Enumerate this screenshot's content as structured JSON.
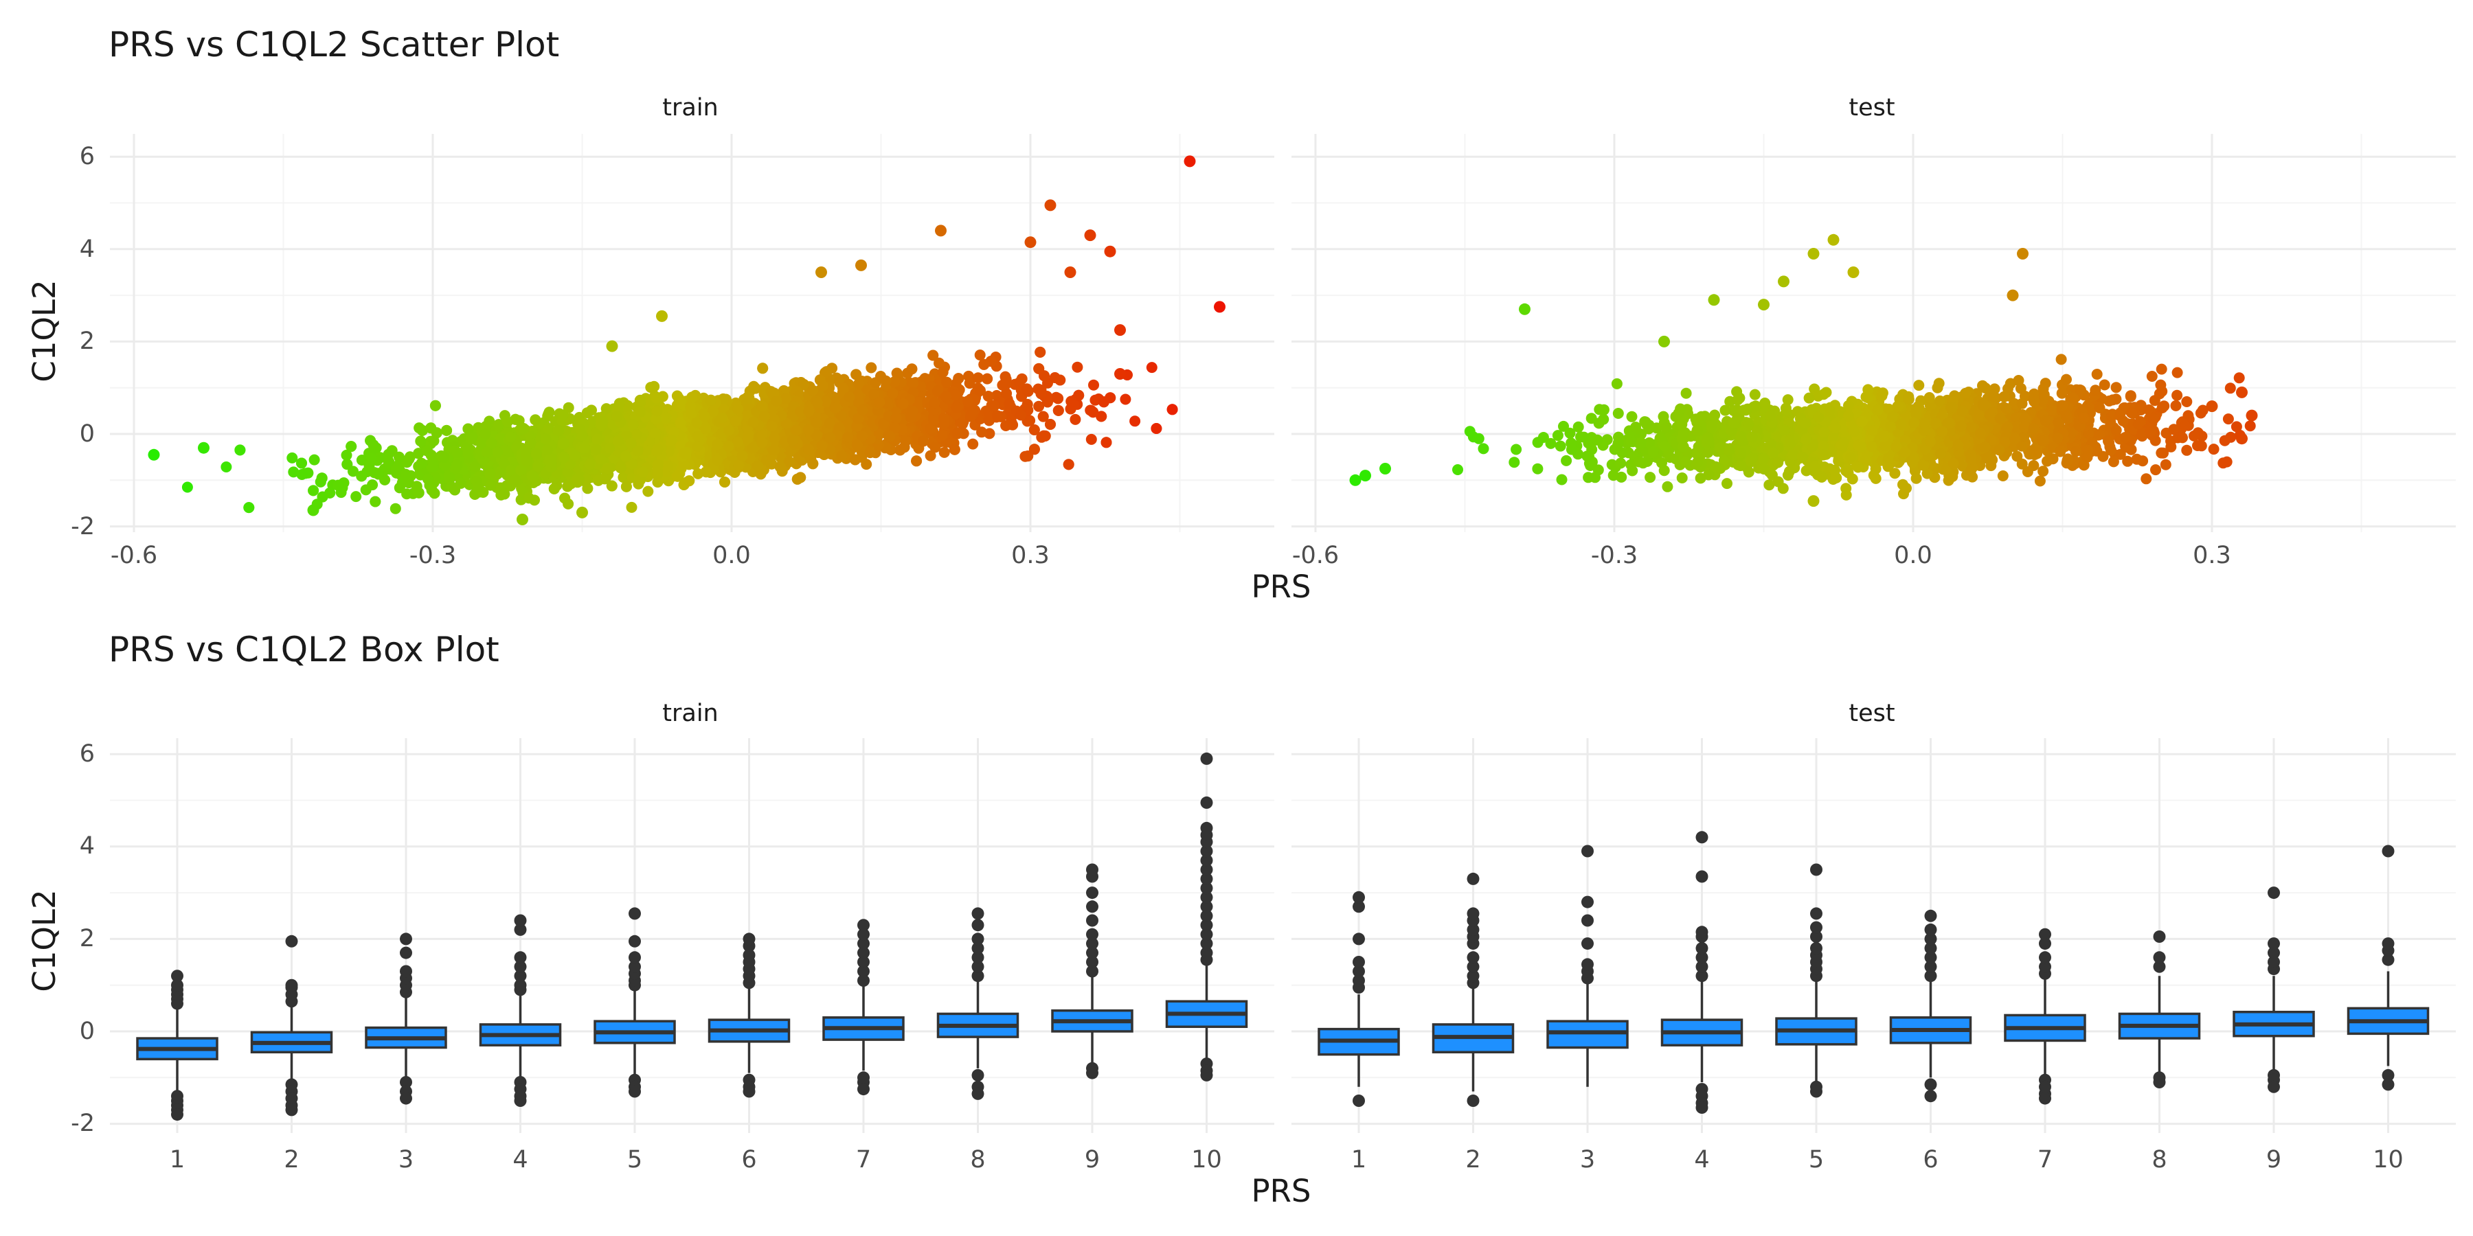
{
  "chart_data": [
    {
      "type": "scatter",
      "title": "PRS vs C1QL2 Scatter Plot",
      "xlabel": "PRS",
      "ylabel": "C1QL2",
      "facets": [
        "train",
        "test"
      ],
      "xlim": [
        -0.6,
        0.5
      ],
      "ylim": [
        -2,
        6
      ],
      "xticks": [
        "-0.6",
        "-0.3",
        "0.0",
        "0.3"
      ],
      "yticks": [
        "-2",
        "0",
        "2",
        "4",
        "6"
      ],
      "grid": true,
      "color_scale": {
        "low": "#22ee00",
        "mid": "#c0b800",
        "high": "#ee1100",
        "mapped_to": "PRS"
      },
      "series": [
        {
          "facet": "train",
          "n_points_approx": 6000,
          "trend": {
            "slope": 2.3,
            "intercept": 0.05,
            "noise_sd": 0.35
          },
          "x_range": [
            -0.58,
            0.49
          ],
          "notable_points": [
            {
              "x": 0.46,
              "y": 5.9
            },
            {
              "x": 0.49,
              "y": 2.75
            },
            {
              "x": 0.32,
              "y": 4.95
            },
            {
              "x": 0.21,
              "y": 4.4
            },
            {
              "x": 0.36,
              "y": 4.3
            },
            {
              "x": 0.3,
              "y": 4.15
            },
            {
              "x": 0.38,
              "y": 3.95
            },
            {
              "x": 0.13,
              "y": 3.65
            },
            {
              "x": 0.09,
              "y": 3.5
            },
            {
              "x": 0.34,
              "y": 3.5
            },
            {
              "x": 0.39,
              "y": 2.25
            },
            {
              "x": 0.39,
              "y": 1.3
            },
            {
              "x": -0.12,
              "y": 1.9
            },
            {
              "x": -0.07,
              "y": 2.55
            },
            {
              "x": -0.53,
              "y": -0.3
            },
            {
              "x": -0.58,
              "y": -0.45
            },
            {
              "x": -0.42,
              "y": -1.65
            },
            {
              "x": -0.21,
              "y": -1.85
            },
            {
              "x": -0.15,
              "y": -1.7
            }
          ]
        },
        {
          "facet": "test",
          "n_points_approx": 2000,
          "trend": {
            "slope": 0.9,
            "intercept": 0.0,
            "noise_sd": 0.38
          },
          "x_range": [
            -0.56,
            0.34
          ],
          "notable_points": [
            {
              "x": -0.39,
              "y": 2.7
            },
            {
              "x": -0.08,
              "y": 4.2
            },
            {
              "x": -0.1,
              "y": 3.9
            },
            {
              "x": -0.06,
              "y": 3.5
            },
            {
              "x": -0.13,
              "y": 3.3
            },
            {
              "x": 0.11,
              "y": 3.9
            },
            {
              "x": 0.1,
              "y": 3.0
            },
            {
              "x": -0.2,
              "y": 2.9
            },
            {
              "x": -0.15,
              "y": 2.8
            },
            {
              "x": -0.25,
              "y": 2.0
            },
            {
              "x": 0.33,
              "y": 0.9
            },
            {
              "x": 0.34,
              "y": 0.4
            },
            {
              "x": 0.3,
              "y": 0.6
            },
            {
              "x": 0.33,
              "y": -0.1
            },
            {
              "x": -0.55,
              "y": -0.9
            },
            {
              "x": -0.56,
              "y": -1.0
            },
            {
              "x": -0.53,
              "y": -0.75
            },
            {
              "x": -0.1,
              "y": -1.45
            }
          ]
        }
      ]
    },
    {
      "type": "box",
      "title": "PRS vs C1QL2 Box Plot",
      "xlabel": "PRS",
      "ylabel": "C1QL2",
      "facets": [
        "train",
        "test"
      ],
      "categories": [
        "1",
        "2",
        "3",
        "4",
        "5",
        "6",
        "7",
        "8",
        "9",
        "10"
      ],
      "ylim": [
        -2,
        6
      ],
      "yticks": [
        "-2",
        "0",
        "2",
        "4",
        "6"
      ],
      "grid": true,
      "box_color": "#1e90ff",
      "series": [
        {
          "facet": "train",
          "boxes": [
            {
              "q1": -0.6,
              "median": -0.38,
              "q3": -0.15,
              "whisker_low": -1.3,
              "whisker_high": 0.5,
              "outliers": [
                0.6,
                0.7,
                0.8,
                0.9,
                1.0,
                1.2,
                -1.4,
                -1.5,
                -1.6,
                -1.7,
                -1.8
              ]
            },
            {
              "q1": -0.45,
              "median": -0.25,
              "q3": -0.02,
              "whisker_low": -1.1,
              "whisker_high": 0.6,
              "outliers": [
                0.65,
                0.8,
                0.95,
                1.0,
                1.95,
                -1.15,
                -1.3,
                -1.45,
                -1.6,
                -1.7
              ]
            },
            {
              "q1": -0.35,
              "median": -0.15,
              "q3": 0.08,
              "whisker_low": -1.0,
              "whisker_high": 0.75,
              "outliers": [
                0.85,
                1.0,
                1.15,
                1.3,
                1.7,
                2.0,
                -1.1,
                -1.3,
                -1.45
              ]
            },
            {
              "q1": -0.3,
              "median": -0.08,
              "q3": 0.15,
              "whisker_low": -1.0,
              "whisker_high": 0.8,
              "outliers": [
                0.9,
                1.0,
                1.2,
                1.4,
                1.6,
                2.2,
                2.4,
                -1.1,
                -1.25,
                -1.4,
                -1.5
              ]
            },
            {
              "q1": -0.25,
              "median": -0.02,
              "q3": 0.22,
              "whisker_low": -0.95,
              "whisker_high": 0.9,
              "outliers": [
                1.0,
                1.1,
                1.25,
                1.4,
                1.6,
                1.95,
                2.55,
                -1.05,
                -1.2,
                -1.3
              ]
            },
            {
              "q1": -0.22,
              "median": 0.02,
              "q3": 0.25,
              "whisker_low": -0.9,
              "whisker_high": 0.95,
              "outliers": [
                1.05,
                1.2,
                1.35,
                1.5,
                1.65,
                1.85,
                2.0,
                -1.05,
                -1.2,
                -1.3
              ]
            },
            {
              "q1": -0.18,
              "median": 0.07,
              "q3": 0.3,
              "whisker_low": -0.85,
              "whisker_high": 1.0,
              "outliers": [
                1.1,
                1.3,
                1.5,
                1.7,
                1.9,
                2.1,
                2.3,
                -1.0,
                -1.1,
                -1.25
              ]
            },
            {
              "q1": -0.12,
              "median": 0.12,
              "q3": 0.38,
              "whisker_low": -0.8,
              "whisker_high": 1.1,
              "outliers": [
                1.2,
                1.4,
                1.6,
                1.8,
                2.0,
                2.3,
                2.55,
                -0.95,
                -1.2,
                -1.35
              ]
            },
            {
              "q1": 0.0,
              "median": 0.22,
              "q3": 0.45,
              "whisker_low": -0.7,
              "whisker_high": 1.2,
              "outliers": [
                1.3,
                1.5,
                1.7,
                1.9,
                2.1,
                2.4,
                2.7,
                3.0,
                3.35,
                3.5,
                -0.8,
                -0.9
              ]
            },
            {
              "q1": 0.1,
              "median": 0.38,
              "q3": 0.65,
              "whisker_low": -0.6,
              "whisker_high": 1.45,
              "outliers": [
                1.55,
                1.7,
                1.9,
                2.1,
                2.3,
                2.5,
                2.7,
                2.9,
                3.1,
                3.3,
                3.5,
                3.7,
                3.9,
                4.1,
                4.25,
                4.4,
                4.95,
                5.9,
                -0.7,
                -0.85,
                -0.95
              ]
            }
          ]
        },
        {
          "facet": "test",
          "boxes": [
            {
              "q1": -0.5,
              "median": -0.2,
              "q3": 0.05,
              "whisker_low": -1.2,
              "whisker_high": 0.8,
              "outliers": [
                0.95,
                1.1,
                1.3,
                1.5,
                2.0,
                2.7,
                2.9,
                -1.5
              ]
            },
            {
              "q1": -0.45,
              "median": -0.12,
              "q3": 0.15,
              "whisker_low": -1.3,
              "whisker_high": 0.95,
              "outliers": [
                1.05,
                1.2,
                1.4,
                1.6,
                1.9,
                2.05,
                2.2,
                2.4,
                2.55,
                3.3,
                -1.5
              ]
            },
            {
              "q1": -0.35,
              "median": -0.02,
              "q3": 0.22,
              "whisker_low": -1.2,
              "whisker_high": 1.05,
              "outliers": [
                1.15,
                1.3,
                1.45,
                1.9,
                2.4,
                2.8,
                3.9
              ]
            },
            {
              "q1": -0.3,
              "median": -0.02,
              "q3": 0.25,
              "whisker_low": -1.1,
              "whisker_high": 1.1,
              "outliers": [
                1.2,
                1.4,
                1.6,
                1.8,
                2.05,
                2.15,
                3.35,
                4.2,
                -1.25,
                -1.4,
                -1.55,
                -1.65
              ]
            },
            {
              "q1": -0.28,
              "median": 0.02,
              "q3": 0.28,
              "whisker_low": -1.1,
              "whisker_high": 1.1,
              "outliers": [
                1.2,
                1.35,
                1.5,
                1.65,
                1.8,
                2.05,
                2.25,
                2.55,
                3.5,
                -1.2,
                -1.3
              ]
            },
            {
              "q1": -0.25,
              "median": 0.03,
              "q3": 0.3,
              "whisker_low": -1.0,
              "whisker_high": 1.1,
              "outliers": [
                1.2,
                1.4,
                1.6,
                1.8,
                2.0,
                2.2,
                2.5,
                -1.15,
                -1.4
              ]
            },
            {
              "q1": -0.2,
              "median": 0.07,
              "q3": 0.35,
              "whisker_low": -0.95,
              "whisker_high": 1.15,
              "outliers": [
                1.25,
                1.4,
                1.6,
                1.9,
                2.1,
                -1.05,
                -1.2,
                -1.35,
                -1.45
              ]
            },
            {
              "q1": -0.15,
              "median": 0.12,
              "q3": 0.38,
              "whisker_low": -0.95,
              "whisker_high": 1.2,
              "outliers": [
                1.4,
                1.6,
                2.05,
                -1.0,
                -1.1
              ]
            },
            {
              "q1": -0.1,
              "median": 0.15,
              "q3": 0.42,
              "whisker_low": -0.85,
              "whisker_high": 1.2,
              "outliers": [
                1.35,
                1.5,
                1.7,
                1.9,
                3.0,
                -0.95,
                -1.05,
                -1.2
              ]
            },
            {
              "q1": -0.05,
              "median": 0.22,
              "q3": 0.5,
              "whisker_low": -0.75,
              "whisker_high": 1.3,
              "outliers": [
                1.55,
                1.75,
                1.9,
                3.9,
                -0.95,
                -1.15
              ]
            }
          ]
        }
      ]
    }
  ]
}
